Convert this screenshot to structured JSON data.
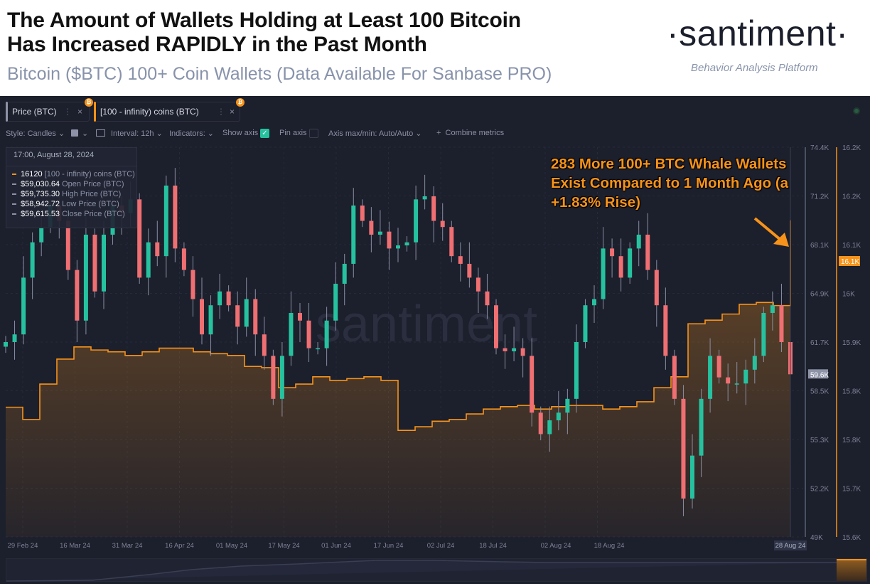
{
  "header": {
    "title_line1": "The Amount of Wallets Holding at Least 100 Bitcoin",
    "title_line2": "Has Increased RAPIDLY in the Past Month",
    "subtitle": "Bitcoin ($BTC) 100+ Coin Wallets (Data Available For Sanbase PRO)",
    "logo": "·santiment·",
    "tagline": "Behavior Analysis Platform"
  },
  "tabs": [
    {
      "label": "Price (BTC)",
      "color": "#8d92a6"
    },
    {
      "label": "[100 - infinity) coins (BTC)",
      "color": "#f7931a"
    }
  ],
  "toolbar": {
    "style": "Style: Candles",
    "interval": "Interval: 12h",
    "indicators": "Indicators:",
    "show_axis": "Show axis",
    "show_axis_checked": true,
    "pin_axis": "Pin axis",
    "pin_axis_checked": false,
    "axis_maxmin": "Axis max/min: Auto/Auto",
    "combine": "Combine metrics"
  },
  "tooltip": {
    "date": "17:00, August 28, 2024",
    "rows": [
      {
        "value": "16120",
        "label": "[100 - infinity) coins (BTC)"
      },
      {
        "value": "$59,030.64",
        "label": "Open Price (BTC)"
      },
      {
        "value": "$59,735.30",
        "label": "High Price (BTC)"
      },
      {
        "value": "$58,942.72",
        "label": "Low Price (BTC)"
      },
      {
        "value": "$59,615.53",
        "label": "Close Price (BTC)"
      }
    ]
  },
  "annotation": "283 More 100+ BTC Whale Wallets Exist Compared to 1 Month Ago (a +1.83% Rise)",
  "watermark": "santiment",
  "chart_data": {
    "type": "candlestick+area",
    "x_tick_labels": [
      "29 Feb 24",
      "16 Mar 24",
      "31 Mar 24",
      "16 Apr 24",
      "01 May 24",
      "17 May 24",
      "01 Jun 24",
      "17 Jun 24",
      "02 Jul 24",
      "18 Jul 24",
      "02 Aug 24",
      "18 Aug 24"
    ],
    "x_hover_label": "28 Aug 24",
    "price_axis": {
      "ticks": [
        "74.4K",
        "71.2K",
        "68.1K",
        "64.9K",
        "61.7K",
        "58.5K",
        "55.3K",
        "52.2K",
        "49K"
      ],
      "ylim": [
        49000,
        74400
      ],
      "current_label": "59.6K"
    },
    "whale_axis": {
      "ticks": [
        "16.2K",
        "16.2K",
        "16.1K",
        "16K",
        "15.9K",
        "15.8K",
        "15.8K",
        "15.7K",
        "15.6K"
      ],
      "ylim": [
        15600,
        16240
      ],
      "current_label": "16.1K"
    },
    "series": [
      {
        "name": "Price (BTC)",
        "kind": "candles",
        "up_color": "#26c2a0",
        "down_color": "#ef6f72",
        "close": [
          61700,
          62200,
          65900,
          68200,
          69200,
          70600,
          69600,
          66400,
          63100,
          68700,
          65000,
          68700,
          70600,
          70100,
          71000,
          65900,
          68200,
          67300,
          71900,
          67800,
          66400,
          64500,
          62200,
          64100,
          65000,
          64100,
          62700,
          64500,
          62200,
          60800,
          58000,
          60800,
          63600,
          63100,
          61300,
          61300,
          63100,
          65500,
          66800,
          70600,
          69600,
          68700,
          68900,
          67800,
          68000,
          68200,
          71000,
          71200,
          69600,
          69200,
          67300,
          66800,
          65900,
          65000,
          64100,
          61300,
          61100,
          61300,
          60800,
          57100,
          55700,
          56600,
          57100,
          58000,
          61700,
          64100,
          64500,
          67800,
          67300,
          65900,
          67800,
          68700,
          66400,
          64100,
          60800,
          58000,
          51500,
          54300,
          58000,
          60800,
          59400,
          59000,
          59000,
          59900,
          60800,
          63600,
          64100,
          61700,
          59600
        ]
      },
      {
        "name": "[100 - infinity) coins (BTC)",
        "kind": "area",
        "color": "#f7931a",
        "values": [
          15813,
          15793,
          15851,
          15892,
          15912,
          15907,
          15904,
          15898,
          15904,
          15910,
          15910,
          15904,
          15901,
          15898,
          15880,
          15878,
          15845,
          15851,
          15863,
          15857,
          15860,
          15863,
          15857,
          15775,
          15781,
          15790,
          15793,
          15802,
          15810,
          15814,
          15816,
          15810,
          15814,
          15816,
          15816,
          15810,
          15814,
          15822,
          15845,
          15863,
          15950,
          15956,
          15966,
          15982,
          15985,
          15980,
          16120
        ]
      }
    ]
  }
}
